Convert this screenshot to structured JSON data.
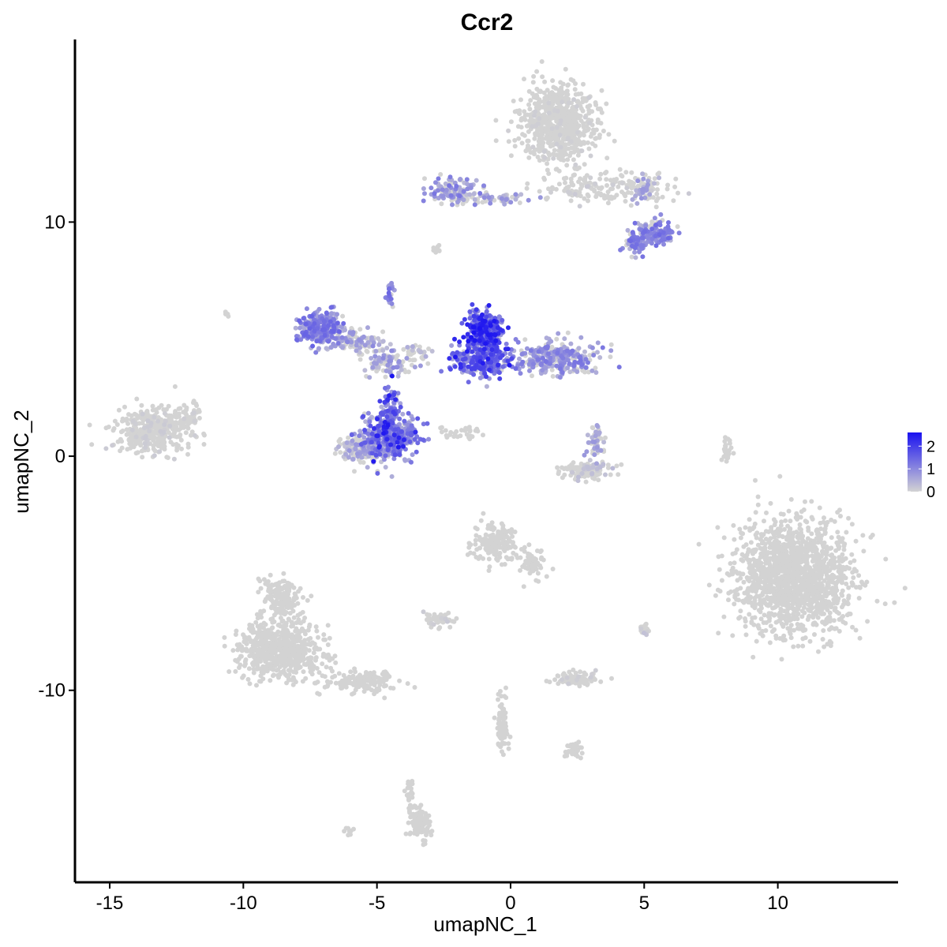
{
  "chart_data": {
    "type": "scatter",
    "title": "Ccr2",
    "xlabel": "umapNC_1",
    "ylabel": "umapNC_2",
    "xlim": [
      -16.3,
      14.5
    ],
    "ylim": [
      -18.2,
      17.8
    ],
    "x_ticks": [
      -15,
      -10,
      -5,
      0,
      5,
      10
    ],
    "x_tick_labels": [
      "-15",
      "-10",
      "-5",
      "0",
      "5",
      "10"
    ],
    "y_ticks": [
      -10,
      0,
      10
    ],
    "y_tick_labels": [
      "-10",
      "0",
      "10"
    ],
    "grid": false,
    "legend_position": "right",
    "color_scale": {
      "low_color": "#d3d3d3",
      "high_color": "#1a12f0",
      "range": [
        0,
        2.6
      ],
      "breaks": [
        0,
        1,
        2
      ],
      "break_labels": [
        "0",
        "1",
        "2"
      ]
    },
    "point_color_default": "#d3d3d3",
    "clusters": [
      {
        "cx": 1.8,
        "cy": 14.2,
        "rx": 1.3,
        "ry": 1.5,
        "n": 700,
        "expr": 0.05
      },
      {
        "cx": 3.3,
        "cy": 11.4,
        "rx": 2.2,
        "ry": 0.6,
        "n": 160,
        "expr": 0.08
      },
      {
        "cx": -2.0,
        "cy": 11.3,
        "rx": 1.0,
        "ry": 0.6,
        "n": 120,
        "expr": 0.75
      },
      {
        "cx": -0.3,
        "cy": 11.0,
        "rx": 1.2,
        "ry": 0.25,
        "n": 40,
        "expr": 0.6
      },
      {
        "cx": 5.4,
        "cy": 9.5,
        "rx": 0.6,
        "ry": 0.45,
        "n": 140,
        "expr": 0.85
      },
      {
        "cx": 4.7,
        "cy": 9.1,
        "rx": 0.4,
        "ry": 0.4,
        "n": 80,
        "expr": 0.8
      },
      {
        "cx": 4.9,
        "cy": 11.4,
        "rx": 0.6,
        "ry": 0.5,
        "n": 50,
        "expr": 0.55
      },
      {
        "cx": -7.1,
        "cy": 5.5,
        "rx": 0.7,
        "ry": 0.6,
        "n": 260,
        "expr": 0.9
      },
      {
        "cx": -5.8,
        "cy": 4.9,
        "rx": 1.0,
        "ry": 0.5,
        "n": 110,
        "expr": 0.55
      },
      {
        "cx": -4.5,
        "cy": 4.0,
        "rx": 0.9,
        "ry": 0.5,
        "n": 90,
        "expr": 0.6
      },
      {
        "cx": -4.5,
        "cy": 0.9,
        "rx": 1.0,
        "ry": 0.9,
        "n": 380,
        "expr": 1.05
      },
      {
        "cx": -5.5,
        "cy": 0.3,
        "rx": 0.8,
        "ry": 0.5,
        "n": 150,
        "expr": 0.5
      },
      {
        "cx": -4.5,
        "cy": 2.3,
        "rx": 0.25,
        "ry": 0.9,
        "n": 50,
        "expr": 1.2
      },
      {
        "cx": -4.5,
        "cy": 6.9,
        "rx": 0.15,
        "ry": 0.5,
        "n": 25,
        "expr": 0.9
      },
      {
        "cx": -1.0,
        "cy": 5.4,
        "rx": 0.6,
        "ry": 0.8,
        "n": 320,
        "expr": 1.5
      },
      {
        "cx": -1.1,
        "cy": 4.1,
        "rx": 1.0,
        "ry": 0.6,
        "n": 260,
        "expr": 1.2
      },
      {
        "cx": 1.7,
        "cy": 4.2,
        "rx": 1.3,
        "ry": 0.6,
        "n": 300,
        "expr": 0.75
      },
      {
        "cx": 2.9,
        "cy": -0.6,
        "rx": 0.9,
        "ry": 0.35,
        "n": 120,
        "expr": 0.2
      },
      {
        "cx": 3.2,
        "cy": 0.6,
        "rx": 0.3,
        "ry": 0.6,
        "n": 50,
        "expr": 0.5
      },
      {
        "cx": -13.4,
        "cy": 1.1,
        "rx": 1.2,
        "ry": 0.9,
        "n": 380,
        "expr": 0.08
      },
      {
        "cx": -12.0,
        "cy": 1.6,
        "rx": 0.4,
        "ry": 0.7,
        "n": 50,
        "expr": 0.05
      },
      {
        "cx": -8.7,
        "cy": -8.3,
        "rx": 1.5,
        "ry": 1.2,
        "n": 650,
        "expr": 0.02
      },
      {
        "cx": -8.6,
        "cy": -6.0,
        "rx": 0.6,
        "ry": 0.8,
        "n": 150,
        "expr": 0.02
      },
      {
        "cx": -5.5,
        "cy": -9.6,
        "rx": 1.2,
        "ry": 0.45,
        "n": 140,
        "expr": 0.02
      },
      {
        "cx": 10.6,
        "cy": -5.2,
        "rx": 2.0,
        "ry": 2.1,
        "n": 1500,
        "expr": 0.0
      },
      {
        "cx": -0.6,
        "cy": -3.7,
        "rx": 0.7,
        "ry": 0.8,
        "n": 190,
        "expr": 0.03
      },
      {
        "cx": 0.8,
        "cy": -4.6,
        "rx": 0.5,
        "ry": 0.6,
        "n": 60,
        "expr": 0.0
      },
      {
        "cx": -2.6,
        "cy": -7.0,
        "rx": 0.5,
        "ry": 0.3,
        "n": 50,
        "expr": 0.1
      },
      {
        "cx": 2.5,
        "cy": -9.5,
        "rx": 0.7,
        "ry": 0.3,
        "n": 80,
        "expr": 0.08
      },
      {
        "cx": -0.3,
        "cy": -11.5,
        "rx": 0.2,
        "ry": 1.1,
        "n": 80,
        "expr": 0.0
      },
      {
        "cx": 2.3,
        "cy": -12.6,
        "rx": 0.35,
        "ry": 0.3,
        "n": 35,
        "expr": 0.0
      },
      {
        "cx": -3.4,
        "cy": -15.7,
        "rx": 0.35,
        "ry": 0.6,
        "n": 110,
        "expr": 0.02
      },
      {
        "cx": -3.8,
        "cy": -14.3,
        "rx": 0.15,
        "ry": 0.6,
        "n": 25,
        "expr": 0.0
      },
      {
        "cx": 8.1,
        "cy": 0.2,
        "rx": 0.15,
        "ry": 0.6,
        "n": 25,
        "expr": 0.0
      },
      {
        "cx": 5.0,
        "cy": -7.4,
        "rx": 0.2,
        "ry": 0.25,
        "n": 25,
        "expr": 0.15
      },
      {
        "cx": -2.0,
        "cy": 1.0,
        "rx": 0.9,
        "ry": 0.25,
        "n": 30,
        "expr": 0.0
      },
      {
        "cx": -3.5,
        "cy": 4.5,
        "rx": 0.4,
        "ry": 0.4,
        "n": 25,
        "expr": 0.4
      },
      {
        "cx": -6.0,
        "cy": -16.0,
        "rx": 0.2,
        "ry": 0.15,
        "n": 10,
        "expr": 0.0
      },
      {
        "cx": -2.8,
        "cy": 8.8,
        "rx": 0.15,
        "ry": 0.15,
        "n": 10,
        "expr": 0.0
      },
      {
        "cx": -10.7,
        "cy": 6.1,
        "rx": 0.1,
        "ry": 0.1,
        "n": 4,
        "expr": 0.0
      }
    ]
  }
}
